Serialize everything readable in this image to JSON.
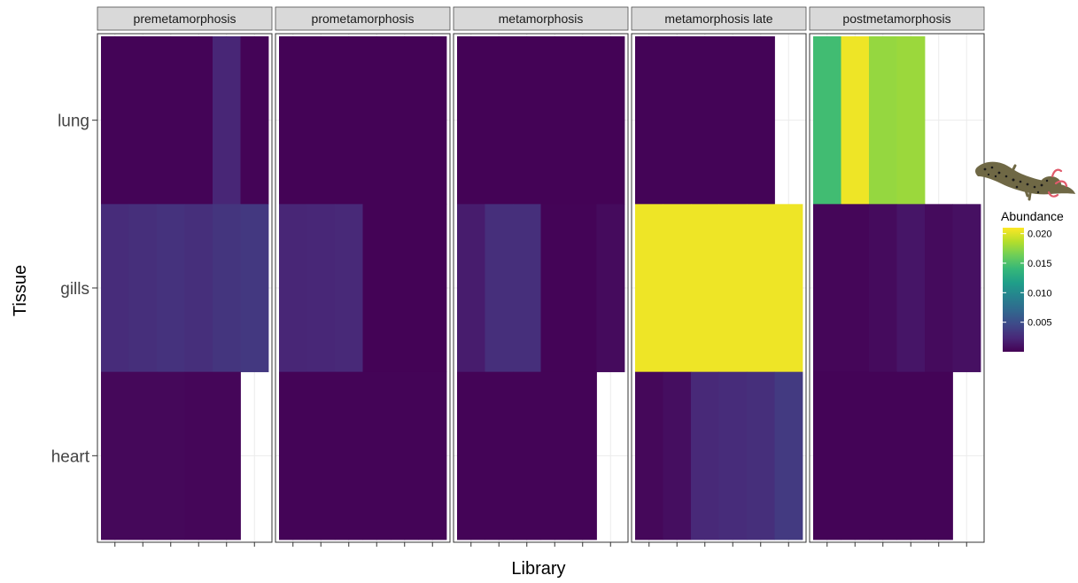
{
  "chart_data": {
    "type": "heatmap",
    "xlabel": "Library",
    "ylabel": "Tissue",
    "tissues": [
      "lung",
      "gills",
      "heart"
    ],
    "legend": {
      "title": "Abundance",
      "ticks": [
        "0.020",
        "0.015",
        "0.010",
        "0.005"
      ],
      "tick_values": [
        0.02,
        0.015,
        0.01,
        0.005
      ],
      "range": [
        0,
        0.021
      ],
      "placement": "right",
      "palette": [
        "#440154",
        "#482878",
        "#3e4a89",
        "#31688e",
        "#26828e",
        "#1f9e89",
        "#35b779",
        "#6ece58",
        "#b5de2b",
        "#fde725"
      ]
    },
    "panels": [
      {
        "label": "premetamorphosis",
        "n_libraries": 6,
        "rows": {
          "lung": [
            0.0002,
            0.0002,
            0.0002,
            0.0002,
            0.0022,
            0.0002
          ],
          "gills": [
            0.0026,
            0.0028,
            0.003,
            0.0028,
            0.0032,
            0.0034
          ],
          "heart": [
            0.0004,
            0.0004,
            0.0004,
            0.0003,
            0.0003,
            null
          ]
        }
      },
      {
        "label": "prometamorphosis",
        "n_libraries": 6,
        "rows": {
          "lung": [
            0.0001,
            0.0001,
            0.0001,
            0.0001,
            0.0001,
            0.0001
          ],
          "gills": [
            0.0022,
            0.0023,
            0.0024,
            0.0001,
            0.0001,
            0.0001
          ],
          "heart": [
            0.0002,
            0.0002,
            0.0002,
            0.0002,
            0.0002,
            0.0002
          ]
        }
      },
      {
        "label": "metamorphosis",
        "n_libraries": 6,
        "rows": {
          "lung": [
            0.0001,
            0.0001,
            0.0001,
            0.0001,
            0.0001,
            0.0001
          ],
          "gills": [
            0.0016,
            0.0028,
            0.0028,
            0.0002,
            0.0002,
            0.0006
          ],
          "heart": [
            0.0002,
            0.0002,
            0.0002,
            0.0002,
            0.0002,
            null
          ]
        }
      },
      {
        "label": "metamorphosis late",
        "n_libraries": 6,
        "rows": {
          "lung": [
            0.0002,
            0.0002,
            0.0002,
            0.0002,
            0.0002,
            null
          ],
          "gills": [
            0.0205,
            0.0205,
            0.0205,
            0.0205,
            0.0205,
            0.0205
          ],
          "heart": [
            0.0004,
            0.0008,
            0.0024,
            0.0026,
            0.0028,
            0.0036
          ]
        }
      },
      {
        "label": "postmetamorphosis",
        "n_libraries": 6,
        "rows": {
          "lung": [
            0.0145,
            0.0205,
            0.0176,
            0.0178,
            null,
            null
          ],
          "gills": [
            0.0003,
            0.0003,
            0.0006,
            0.0012,
            0.0006,
            0.0009
          ],
          "heart": [
            0.0002,
            0.0002,
            0.0002,
            0.0002,
            0.0002,
            null
          ]
        }
      }
    ],
    "grid": true
  }
}
